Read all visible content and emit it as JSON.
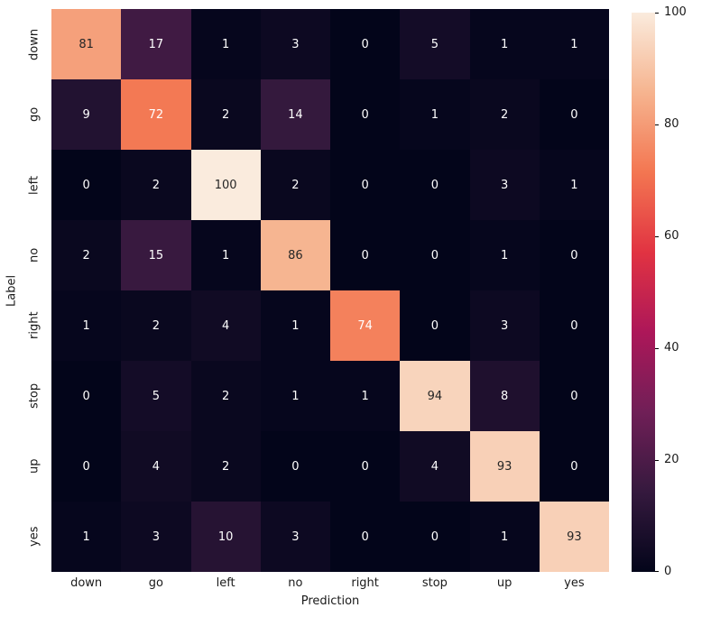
{
  "figure": {
    "background": "#FFFFFF"
  },
  "chart_data": {
    "type": "heatmap",
    "title": "",
    "xlabel": "Prediction",
    "ylabel": "Label",
    "x_categories": [
      "down",
      "go",
      "left",
      "no",
      "right",
      "stop",
      "up",
      "yes"
    ],
    "y_categories": [
      "down",
      "go",
      "left",
      "no",
      "right",
      "stop",
      "up",
      "yes"
    ],
    "values": [
      [
        81,
        17,
        1,
        3,
        0,
        5,
        1,
        1
      ],
      [
        9,
        72,
        2,
        14,
        0,
        1,
        2,
        0
      ],
      [
        0,
        2,
        100,
        2,
        0,
        0,
        3,
        1
      ],
      [
        2,
        15,
        1,
        86,
        0,
        0,
        1,
        0
      ],
      [
        1,
        2,
        4,
        1,
        74,
        0,
        3,
        0
      ],
      [
        0,
        5,
        2,
        1,
        1,
        94,
        8,
        0
      ],
      [
        0,
        4,
        2,
        0,
        0,
        4,
        93,
        0
      ],
      [
        1,
        3,
        10,
        3,
        0,
        0,
        1,
        93
      ]
    ],
    "vmin": 0,
    "vmax": 100,
    "annot": true,
    "grid": false,
    "legend_position": "colorbar-right",
    "colormap": {
      "name": "rocket",
      "stops": [
        [
          0.0,
          "#03051A"
        ],
        [
          0.143,
          "#35193E"
        ],
        [
          0.286,
          "#701F57"
        ],
        [
          0.429,
          "#AD1759"
        ],
        [
          0.571,
          "#E13342"
        ],
        [
          0.714,
          "#F37651"
        ],
        [
          0.857,
          "#F6B48F"
        ],
        [
          1.0,
          "#FAEBDD"
        ]
      ]
    },
    "annot_text_colors": {
      "light": "#FFFFFF",
      "dark": "#262626"
    },
    "colorbar": {
      "ticks": [
        0,
        20,
        40,
        60,
        80,
        100
      ]
    }
  }
}
